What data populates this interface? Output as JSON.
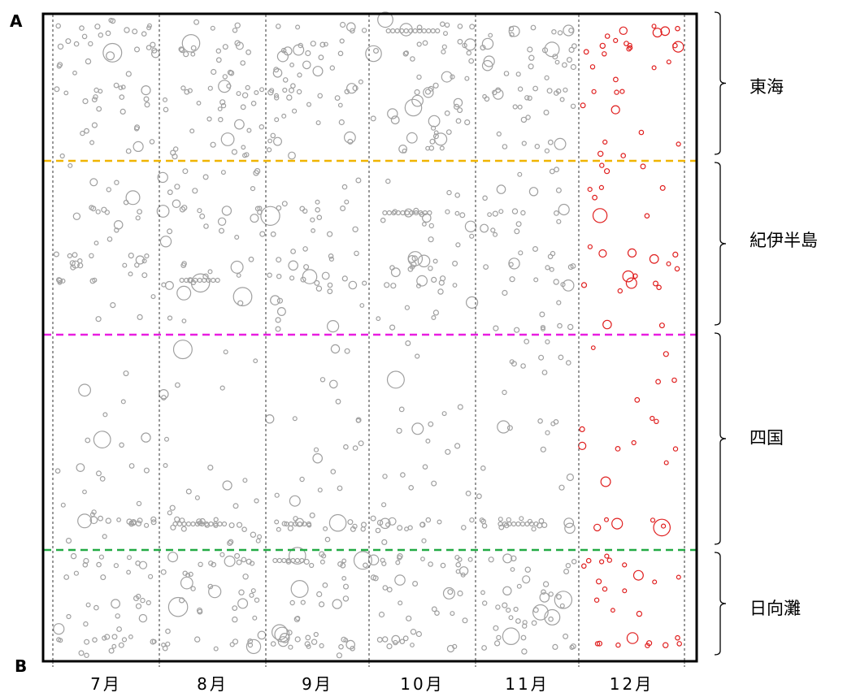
{
  "corner_labels": {
    "top": "A",
    "bottom": "B"
  },
  "chart_data": {
    "type": "scatter",
    "title": "",
    "xlabel": "",
    "ylabel": "",
    "x_categories": [
      "7月",
      "8月",
      "9月",
      "10月",
      "11月",
      "12月"
    ],
    "highlight_month": "12月",
    "regions": [
      {
        "name": "東海",
        "position": "top"
      },
      {
        "name": "紀伊半島",
        "position": "upper-middle"
      },
      {
        "name": "四国",
        "position": "lower-middle"
      },
      {
        "name": "日向灘",
        "position": "bottom"
      }
    ],
    "region_boundaries": [
      {
        "between": [
          "東海",
          "紀伊半島"
        ],
        "color": "#f0b400"
      },
      {
        "between": [
          "紀伊半島",
          "四国"
        ],
        "color": "#e81ee0"
      },
      {
        "between": [
          "四国",
          "日向灘"
        ],
        "color": "#22aa44"
      }
    ],
    "colors": {
      "past_months": "#a0a0a0",
      "latest_month": "#e02020"
    },
    "grid": "vertical dashed lines at month boundaries"
  }
}
